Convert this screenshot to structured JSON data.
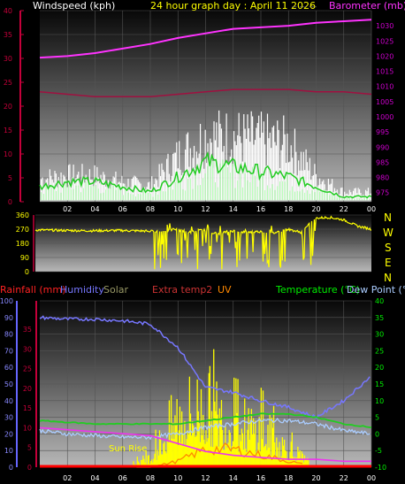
{
  "title": "24 hour graph day : April 11 2026",
  "colors": {
    "background": "#000000",
    "wind": "#ffffff",
    "wind_avg": "#22cc22",
    "wind_low": "#b8ffb8",
    "barometer": "#ff33ff",
    "barometer_axis": "#cc00cc",
    "red_axis": "#c4003a",
    "direction": "#ffff00",
    "humidity": "#7777ff",
    "temperature": "#22cc22",
    "dewpoint": "#aaccff",
    "solar": "#ffff00",
    "uv": "#ff8800",
    "rain": "#ff0000",
    "extra": "#ff4444"
  },
  "panel1": {
    "left_label": "Windspeed (kph)",
    "right_label": "Barometer (mb)",
    "dots": "-- --- ---"
  },
  "panel2": {
    "compass": [
      "N",
      "W",
      "S",
      "E",
      "N"
    ]
  },
  "panel3": {
    "legend": {
      "rainfall": "Rainfall (mm)",
      "humidity": "Humidity",
      "solar": "Solar",
      "extra_temp": "Extra temp2",
      "uv": "UV",
      "temperature": "Temperature (°C)",
      "dewpoint": "Dew Point (°C)"
    },
    "annotation": "Sun Rise"
  },
  "chart_data": [
    {
      "type": "line",
      "name": "wind-barometer",
      "x_ticks": [
        "02",
        "04",
        "06",
        "08",
        "10",
        "12",
        "14",
        "16",
        "18",
        "20",
        "22",
        "00"
      ],
      "y_left_ticks": [
        "0",
        "5",
        "10",
        "15",
        "20",
        "25",
        "30",
        "35",
        "40"
      ],
      "ylim_left": [
        0,
        40
      ],
      "y_right_ticks": [
        "975",
        "980",
        "985",
        "990",
        "995",
        "1000",
        "1005",
        "1010",
        "1015",
        "1020",
        "1025",
        "1030"
      ],
      "ylim_right": [
        972,
        1035
      ],
      "x_hours": [
        0,
        2,
        4,
        6,
        8,
        10,
        12,
        14,
        16,
        18,
        20,
        22,
        24
      ],
      "barometer": [
        1019.5,
        1020,
        1021,
        1022.5,
        1024,
        1026,
        1027.5,
        1029,
        1029.5,
        1030,
        1031,
        1031.5,
        1032
      ],
      "red_line_left": [
        23,
        22.5,
        22,
        22,
        22,
        22.5,
        23,
        23.5,
        23.5,
        23.5,
        23,
        23,
        22.5
      ],
      "wind_gust_envelope": [
        7,
        8,
        8,
        6,
        5,
        14,
        20,
        20,
        19,
        18,
        8,
        3,
        3
      ],
      "wind_avg": [
        3,
        4,
        4,
        3,
        2,
        5,
        8,
        7,
        6,
        5,
        3,
        1,
        1
      ],
      "grid": true
    },
    {
      "type": "scatter",
      "name": "wind-direction",
      "y_ticks": [
        "0",
        "90",
        "180",
        "270",
        "360"
      ],
      "ylim": [
        0,
        360
      ],
      "x_hours": [
        0,
        2,
        4,
        6,
        7,
        8,
        9,
        10,
        11,
        12,
        13,
        14,
        15,
        16,
        17,
        18,
        19,
        20,
        21,
        22,
        23,
        24
      ],
      "direction": [
        265,
        262,
        260,
        262,
        260,
        258,
        255,
        270,
        250,
        265,
        240,
        260,
        250,
        255,
        245,
        270,
        250,
        340,
        345,
        330,
        290,
        270
      ]
    },
    {
      "type": "line",
      "name": "temp-humidity-solar",
      "y_left_outer_ticks": [
        "0",
        "10",
        "20",
        "30",
        "40",
        "50",
        "60",
        "70",
        "80",
        "90",
        "100"
      ],
      "ylim_left_outer": [
        0,
        100
      ],
      "y_left_inner_ticks": [
        "0",
        "5",
        "10",
        "15",
        "20",
        "25",
        "30",
        "35"
      ],
      "ylim_left_inner": [
        0,
        35
      ],
      "y_right_ticks": [
        "-10",
        "-5",
        "0",
        "5",
        "10",
        "15",
        "20",
        "25",
        "30",
        "35",
        "40"
      ],
      "ylim_right": [
        -10,
        40
      ],
      "x_hours": [
        0,
        2,
        4,
        6,
        8,
        10,
        12,
        14,
        16,
        18,
        20,
        22,
        24
      ],
      "humidity": [
        90,
        89,
        89,
        88,
        86,
        72,
        48,
        45,
        40,
        36,
        30,
        40,
        55
      ],
      "temperature": [
        4,
        3.5,
        3,
        3,
        3,
        3,
        4,
        5,
        6,
        6,
        5,
        3,
        2
      ],
      "dewpoint": [
        1,
        0,
        -0.5,
        -1,
        -1,
        0,
        2,
        3,
        4,
        4,
        3,
        1,
        0
      ],
      "extra_temp": [
        10,
        9.5,
        9,
        8.5,
        8,
        6,
        4,
        3,
        2.5,
        2,
        2,
        1.5,
        1.5
      ],
      "solar_peak": [
        0,
        0,
        0,
        0,
        10,
        55,
        65,
        45,
        40,
        20,
        0,
        0,
        0
      ],
      "uv": [
        0,
        0,
        0,
        0,
        0,
        1,
        3,
        3,
        2,
        1,
        0,
        0,
        0
      ],
      "rainfall": [
        0,
        0,
        0,
        0,
        0,
        0,
        0,
        0,
        0,
        0,
        0,
        0,
        0
      ],
      "grid": true
    }
  ]
}
